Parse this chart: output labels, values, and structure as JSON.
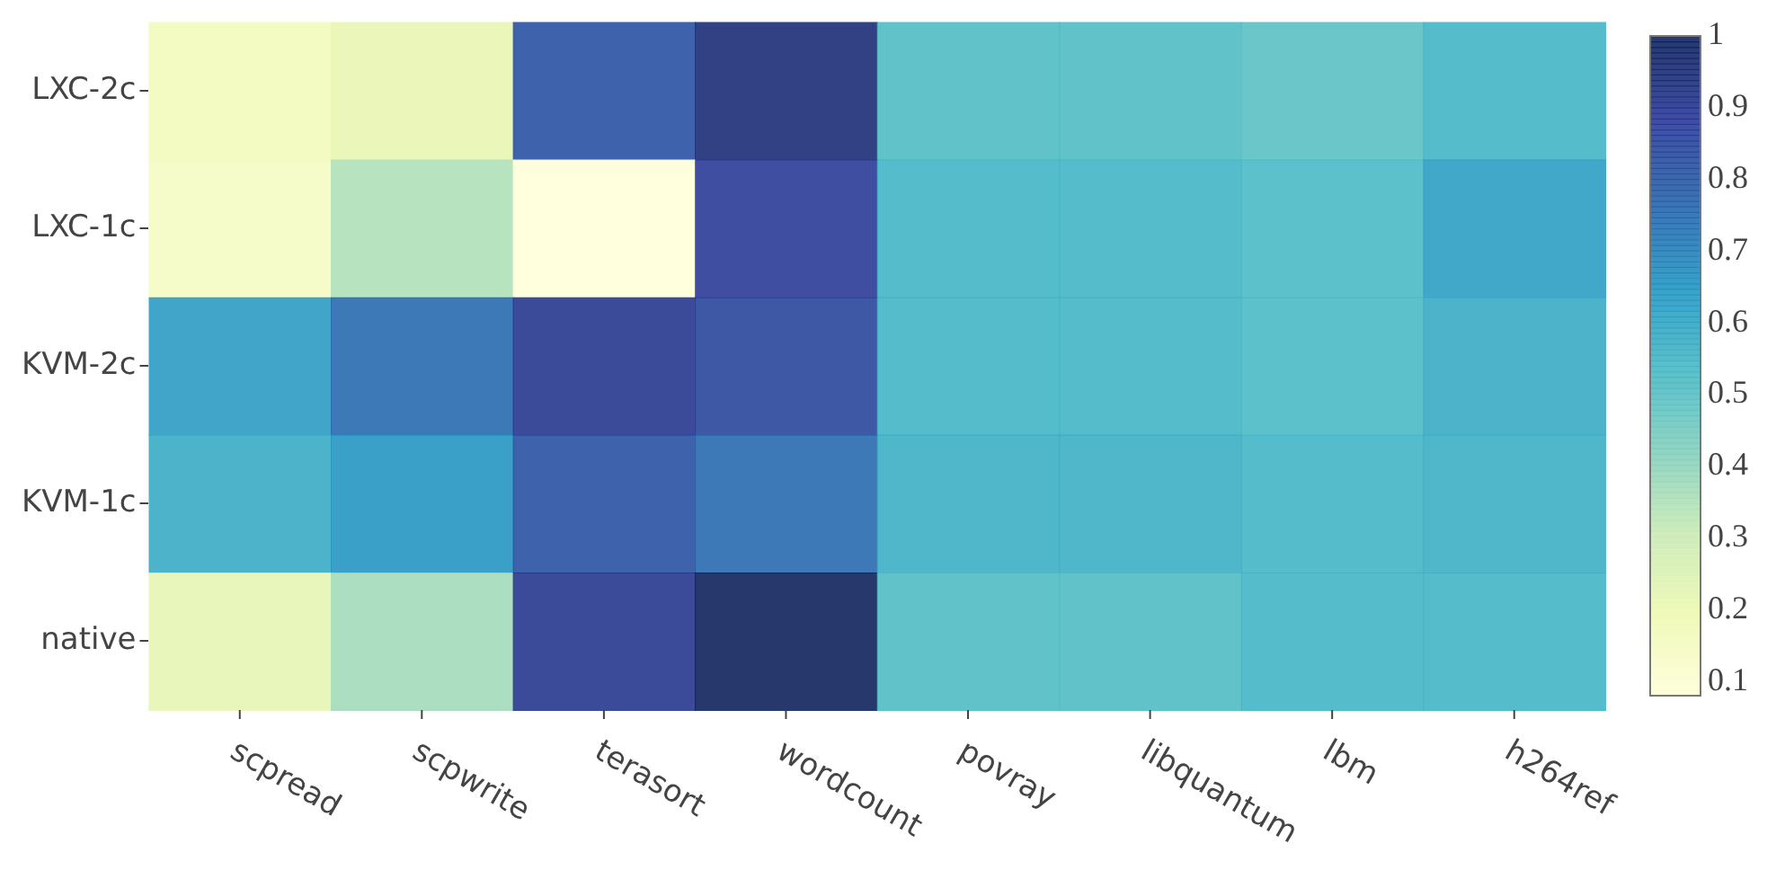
{
  "chart_data": {
    "type": "heatmap",
    "categories": [
      "scpread",
      "scpwrite",
      "terasort",
      "wordcount",
      "povray",
      "libquantum",
      "lbm",
      "h264ref"
    ],
    "y_categories": [
      "LXC-2c",
      "LXC-1c",
      "KVM-2c",
      "KVM-1c",
      "native"
    ],
    "cells": [
      [
        0.17,
        0.21,
        0.82,
        0.95,
        0.52,
        0.52,
        0.5,
        0.55
      ],
      [
        0.15,
        0.35,
        0.08,
        0.88,
        0.55,
        0.55,
        0.53,
        0.62
      ],
      [
        0.63,
        0.75,
        0.9,
        0.85,
        0.55,
        0.55,
        0.53,
        0.58
      ],
      [
        0.58,
        0.65,
        0.82,
        0.75,
        0.57,
        0.57,
        0.55,
        0.57
      ],
      [
        0.22,
        0.37,
        0.9,
        1,
        0.52,
        0.52,
        0.55,
        0.55
      ]
    ],
    "clim": [
      0.08,
      1
    ],
    "cticks": [
      0.1,
      0.2,
      0.3,
      0.4,
      0.5,
      0.6,
      0.7,
      0.8,
      0.9,
      1
    ]
  }
}
